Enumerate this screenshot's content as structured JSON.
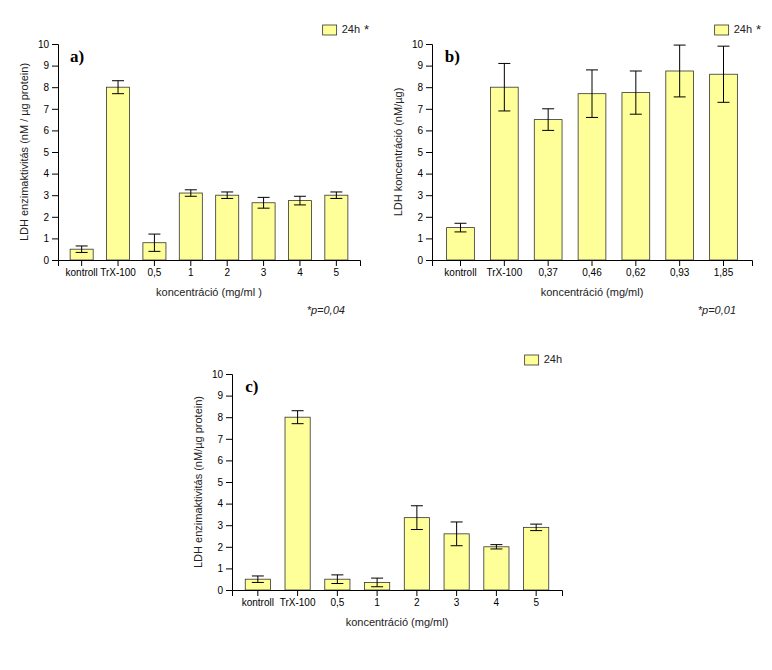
{
  "chart_data": [
    {
      "type": "bar",
      "title": "a)",
      "categories": [
        "kontroll",
        "TrX-100",
        "0,5",
        "1",
        "2",
        "3",
        "4",
        "5"
      ],
      "series": [
        {
          "name": "24h",
          "color": "#FFFF99",
          "values": [
            0.5,
            8.0,
            0.8,
            3.1,
            3.0,
            2.65,
            2.75,
            3.0
          ],
          "errors": [
            0.15,
            0.3,
            0.4,
            0.15,
            0.15,
            0.25,
            0.2,
            0.15
          ]
        }
      ],
      "ylabel": "LDH enzimaktivitás (nM / µg protein)",
      "xlabel": "koncentráció (mg/ml )",
      "ylim": [
        0,
        10
      ],
      "yticks": [
        0,
        1,
        2,
        3,
        4,
        5,
        6,
        7,
        8,
        9,
        10
      ],
      "annotations": [
        "*p=0,04",
        "*"
      ],
      "legend": "upper right",
      "grid": false
    },
    {
      "type": "bar",
      "title": "b)",
      "categories": [
        "kontroll",
        "TrX-100",
        "0,37",
        "0,46",
        "0,62",
        "0,93",
        "1,85"
      ],
      "series": [
        {
          "name": "24h",
          "color": "#FFFF99",
          "values": [
            1.5,
            8.0,
            6.5,
            7.7,
            7.75,
            8.75,
            8.6
          ],
          "errors": [
            0.2,
            1.1,
            0.5,
            1.1,
            1.0,
            1.2,
            1.3
          ]
        }
      ],
      "ylabel": "LDH koncentráció (nM/µg)",
      "xlabel": "koncentráció (mg/ml)",
      "ylim": [
        0,
        10
      ],
      "yticks": [
        0,
        1,
        2,
        3,
        4,
        5,
        6,
        7,
        8,
        9,
        10
      ],
      "annotations": [
        "*p=0,01",
        "*"
      ],
      "legend": "upper right",
      "grid": false
    },
    {
      "type": "bar",
      "title": "c)",
      "categories": [
        "kontroll",
        "TrX-100",
        "0,5",
        "1",
        "2",
        "3",
        "4",
        "5"
      ],
      "series": [
        {
          "name": "24h",
          "color": "#FFFF99",
          "values": [
            0.5,
            8.0,
            0.5,
            0.35,
            3.35,
            2.6,
            2.0,
            2.9
          ],
          "errors": [
            0.15,
            0.3,
            0.2,
            0.2,
            0.55,
            0.55,
            0.1,
            0.15
          ]
        }
      ],
      "ylabel": "LDH enzimaktivitás (nM/µg protein)",
      "xlabel": "koncentráció (mg/ml)",
      "ylim": [
        0,
        10
      ],
      "yticks": [
        0,
        1,
        2,
        3,
        4,
        5,
        6,
        7,
        8,
        9,
        10
      ],
      "legend": "upper right",
      "grid": false
    }
  ]
}
